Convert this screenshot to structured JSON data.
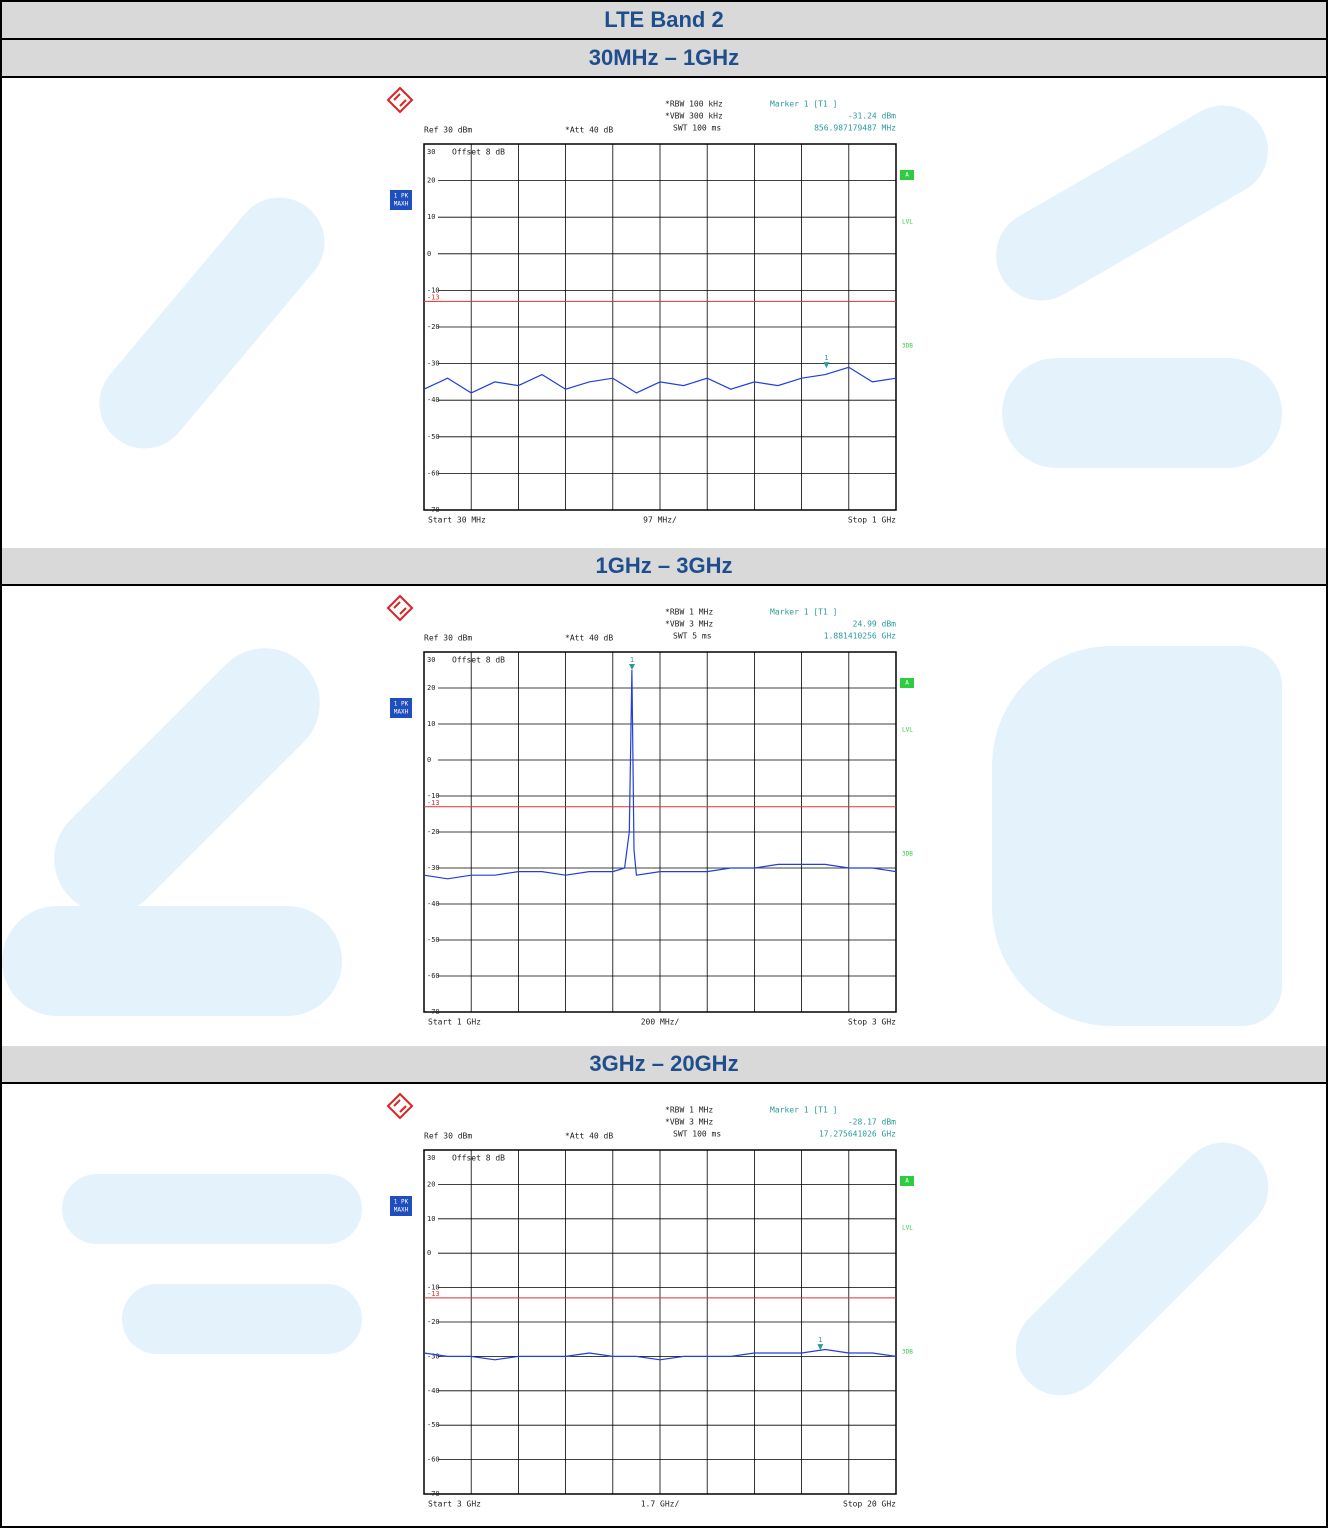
{
  "header": {
    "title": "LTE Band 2"
  },
  "sections": [
    {
      "title": "30MHz – 1GHz",
      "plot": {
        "rbw": "*RBW 100 kHz",
        "vbw": "*VBW 300 kHz",
        "swt": "SWT 100 ms",
        "marker_title": "Marker 1 [T1 ]",
        "marker_level": "-31.24 dBm",
        "marker_freq": "856.987179487 MHz",
        "ref": "Ref 30 dBm",
        "att": "*Att 40 dB",
        "offset": "Offset 8 dB",
        "trace_label_1": "1 PK",
        "trace_label_2": "MAXH",
        "side_a": "A",
        "side_lvl": "LVL",
        "side_3db": "3DB",
        "marker_number": "1",
        "limit": -13,
        "limit_label": "-13",
        "start": "Start 30 MHz",
        "per_div": "97 MHz/",
        "stop": "Stop 1 GHz",
        "xlim": [
          30,
          1000
        ],
        "xticks": [
          30,
          127,
          224,
          321,
          418,
          515,
          612,
          709,
          806,
          903,
          1000
        ],
        "ylim": [
          -70,
          30
        ],
        "yticks": [
          30,
          20,
          10,
          0,
          -10,
          -20,
          -30,
          -40,
          -50,
          -60,
          -70
        ],
        "trace": {
          "x": [
            30,
            78.5,
            127,
            175.5,
            224,
            272.5,
            321,
            369.5,
            418,
            466.5,
            515,
            563.5,
            612,
            660.5,
            709,
            757.5,
            806,
            854.5,
            903,
            951.5,
            1000
          ],
          "y": [
            -37,
            -34,
            -38,
            -35,
            -36,
            -33,
            -37,
            -35,
            -34,
            -38,
            -35,
            -36,
            -34,
            -37,
            -35,
            -36,
            -34,
            -33,
            -31,
            -35,
            -34
          ]
        },
        "marker": {
          "x": 856.987179487,
          "y": -31.24
        }
      }
    },
    {
      "title": "1GHz – 3GHz",
      "plot": {
        "rbw": "*RBW 1 MHz",
        "vbw": "*VBW 3 MHz",
        "swt": "SWT 5 ms",
        "marker_title": "Marker 1 [T1 ]",
        "marker_level": "24.99 dBm",
        "marker_freq": "1.881410256 GHz",
        "ref": "Ref 30 dBm",
        "att": "*Att 40 dB",
        "offset": "Offset 8 dB",
        "trace_label_1": "1 PK",
        "trace_label_2": "MAXH",
        "side_a": "A",
        "side_lvl": "LVL",
        "side_3db": "3DB",
        "marker_number": "1",
        "limit": -13,
        "limit_label": "-13",
        "start": "Start 1 GHz",
        "per_div": "200 MHz/",
        "stop": "Stop 3 GHz",
        "xlim": [
          1000,
          3000
        ],
        "xticks": [
          1000,
          1200,
          1400,
          1600,
          1800,
          2000,
          2200,
          2400,
          2600,
          2800,
          3000
        ],
        "ylim": [
          -70,
          30
        ],
        "yticks": [
          30,
          20,
          10,
          0,
          -10,
          -20,
          -30,
          -40,
          -50,
          -60,
          -70
        ],
        "trace": {
          "x": [
            1000,
            1100,
            1200,
            1300,
            1400,
            1500,
            1600,
            1700,
            1800,
            1850,
            1870,
            1881,
            1890,
            1900,
            2000,
            2100,
            2200,
            2300,
            2400,
            2500,
            2600,
            2700,
            2800,
            2900,
            3000
          ],
          "y": [
            -32,
            -33,
            -32,
            -32,
            -31,
            -31,
            -32,
            -31,
            -31,
            -30,
            -20,
            24.99,
            -25,
            -32,
            -31,
            -31,
            -31,
            -30,
            -30,
            -29,
            -29,
            -29,
            -30,
            -30,
            -31
          ]
        },
        "marker": {
          "x": 1881.410256,
          "y": 24.99
        }
      }
    },
    {
      "title": "3GHz – 20GHz",
      "plot": {
        "rbw": "*RBW 1 MHz",
        "vbw": "*VBW 3 MHz",
        "swt": "SWT 100 ms",
        "marker_title": "Marker 1 [T1 ]",
        "marker_level": "-28.17 dBm",
        "marker_freq": "17.275641026 GHz",
        "ref": "Ref 30 dBm",
        "att": "*Att 40 dB",
        "offset": "Offset 8 dB",
        "trace_label_1": "1 PK",
        "trace_label_2": "MAXH",
        "side_a": "A",
        "side_lvl": "LVL",
        "side_3db": "3DB",
        "marker_number": "1",
        "limit": -13,
        "limit_label": "-13",
        "start": "Start 3 GHz",
        "per_div": "1.7 GHz/",
        "stop": "Stop 20 GHz",
        "xlim": [
          3000,
          20000
        ],
        "xticks": [
          3000,
          4700,
          6400,
          8100,
          9800,
          11500,
          13200,
          14900,
          16600,
          18300,
          20000
        ],
        "ylim": [
          -70,
          30
        ],
        "yticks": [
          30,
          20,
          10,
          0,
          -10,
          -20,
          -30,
          -40,
          -50,
          -60,
          -70
        ],
        "trace": {
          "x": [
            3000,
            3850,
            4700,
            5550,
            6400,
            7250,
            8100,
            8950,
            9800,
            10650,
            11500,
            12350,
            13200,
            14050,
            14900,
            15750,
            16600,
            17450,
            18300,
            19150,
            20000
          ],
          "y": [
            -29,
            -30,
            -30,
            -31,
            -30,
            -30,
            -30,
            -29,
            -30,
            -30,
            -31,
            -30,
            -30,
            -30,
            -29,
            -29,
            -29,
            -28,
            -29,
            -29,
            -30
          ]
        },
        "marker": {
          "x": 17275.641026,
          "y": -28.17
        }
      }
    }
  ]
}
